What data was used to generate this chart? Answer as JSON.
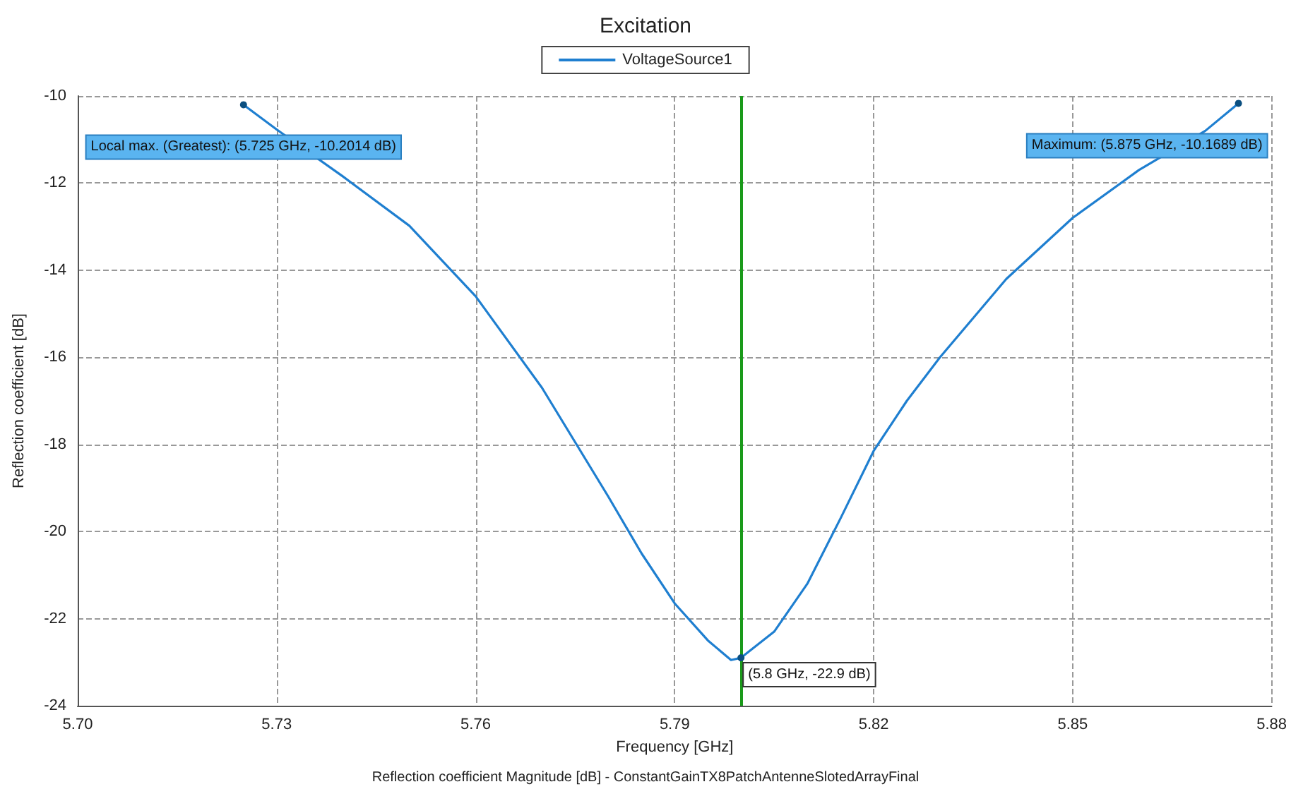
{
  "chart_data": {
    "type": "line",
    "title": "Excitation",
    "xlabel": "Frequency [GHz]",
    "ylabel": "Reflection coefficient [dB]",
    "x": [
      5.725,
      5.73,
      5.74,
      5.75,
      5.76,
      5.77,
      5.78,
      5.785,
      5.79,
      5.795,
      5.7985,
      5.8,
      5.805,
      5.81,
      5.815,
      5.82,
      5.825,
      5.83,
      5.84,
      5.85,
      5.86,
      5.87,
      5.875
    ],
    "series": [
      {
        "name": "VoltageSource1",
        "color": "#1f7fd0",
        "values": [
          -10.2014,
          -10.77,
          -11.85,
          -12.98,
          -14.6,
          -16.7,
          -19.2,
          -20.5,
          -21.65,
          -22.5,
          -22.95,
          -22.9,
          -22.3,
          -21.2,
          -19.7,
          -18.15,
          -17.0,
          -16.0,
          -14.2,
          -12.8,
          -11.7,
          -10.8,
          -10.1689
        ]
      }
    ],
    "xlim": [
      5.7,
      5.88
    ],
    "xticks": [
      {
        "value": 5.7,
        "label": "5.70"
      },
      {
        "value": 5.73,
        "label": "5.73"
      },
      {
        "value": 5.76,
        "label": "5.76"
      },
      {
        "value": 5.79,
        "label": "5.79"
      },
      {
        "value": 5.82,
        "label": "5.82"
      },
      {
        "value": 5.85,
        "label": "5.85"
      },
      {
        "value": 5.88,
        "label": "5.88"
      }
    ],
    "ylim": [
      -24,
      -10
    ],
    "yticks": [
      -24,
      -22,
      -20,
      -18,
      -16,
      -14,
      -12,
      -10
    ],
    "ref_lines": [
      {
        "axis": "x",
        "value": 5.8,
        "color": "#1a9a1a"
      }
    ],
    "annotations": [
      {
        "text": "Local max. (Greatest): (5.725 GHz, -10.2014 dB)",
        "x": 5.725,
        "y": -10.2014
      },
      {
        "text": "Maximum: (5.875 GHz, -10.1689 dB)",
        "x": 5.875,
        "y": -10.1689
      },
      {
        "text": "(5.8 GHz, -22.9 dB)",
        "x": 5.8,
        "y": -22.9
      },
      "Reflection coefficient Magnitude [dB] - ConstantGainTX8PatchAntenneSlotedArrayFinal"
    ],
    "grid": true,
    "legend": "top",
    "marker": "none",
    "line_style": "solid"
  }
}
